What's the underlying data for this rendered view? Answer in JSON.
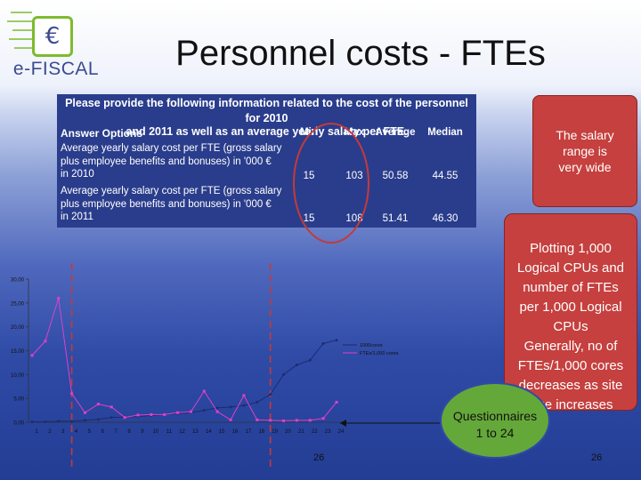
{
  "logo": {
    "text": "e-FISCAL",
    "symbol": "€"
  },
  "title": "Personnel costs - FTEs",
  "table": {
    "header_line1": "Please provide the following information related to the cost of the personnel for 2010",
    "header_line2": "and 2011 as well as an average yearly salary per FTE.",
    "columns": [
      "Answer Options",
      "Min",
      "Max",
      "Average",
      "Median"
    ],
    "rows": [
      {
        "label_lines": [
          "Average yearly salary cost per FTE (gross salary",
          "plus employee benefits and bonuses) in '000 €",
          "in 2010"
        ],
        "min": "15",
        "max": "103",
        "average": "50.58",
        "median": "44.55"
      },
      {
        "label_lines": [
          "Average yearly salary cost per FTE (gross salary",
          "plus employee benefits and bonuses) in '000 €",
          "in 2011"
        ],
        "min": "15",
        "max": "108",
        "average": "51.41",
        "median": "46.30"
      }
    ]
  },
  "callouts": {
    "salary": [
      "The salary",
      "range is",
      "very wide"
    ],
    "plotting": [
      "Plotting 1,000",
      "Logical CPUs and",
      "number of FTEs",
      "per 1,000 Logical",
      "CPUs",
      "Generally, no of",
      "FTEs/1,000 cores",
      "decreases as site",
      "size increases"
    ],
    "questionnaires": [
      "Questionnaires",
      "1 to 24"
    ]
  },
  "page_numbers": {
    "center": "26",
    "right": "26"
  },
  "colors": {
    "series1": "#1c2a6e",
    "series2": "#e040c8",
    "callout": "#c5403e",
    "green": "#65a83a",
    "dashed": "#c43a3a"
  },
  "chart_data": {
    "type": "line",
    "x": [
      1,
      2,
      3,
      4,
      5,
      6,
      7,
      8,
      9,
      10,
      11,
      12,
      13,
      14,
      15,
      16,
      17,
      18,
      19,
      20,
      21,
      22,
      23,
      24
    ],
    "ylim": [
      0,
      30
    ],
    "yticks": [
      "0,00",
      "5,00",
      "10,00",
      "15,00",
      "20,00",
      "25,00",
      "30,00"
    ],
    "legend_position": "right",
    "series": [
      {
        "name": "1000cores",
        "values": [
          0.1,
          0.1,
          0.2,
          0.2,
          0.4,
          0.6,
          1.0,
          1.1,
          1.2,
          1.4,
          1.6,
          1.8,
          2.0,
          2.5,
          3.0,
          3.2,
          3.5,
          4.2,
          5.8,
          10.0,
          12.0,
          13.0,
          16.5,
          17.2
        ]
      },
      {
        "name": "FTEs/1,000 cores",
        "values": [
          14.0,
          17.0,
          26.0,
          6.0,
          2.0,
          3.8,
          3.2,
          1.0,
          1.5,
          1.6,
          1.6,
          2.0,
          2.2,
          6.5,
          2.2,
          0.5,
          5.6,
          0.5,
          0.4,
          0.3,
          0.4,
          0.4,
          0.8,
          4.2
        ]
      }
    ],
    "marked_x": [
      4,
      19
    ]
  }
}
